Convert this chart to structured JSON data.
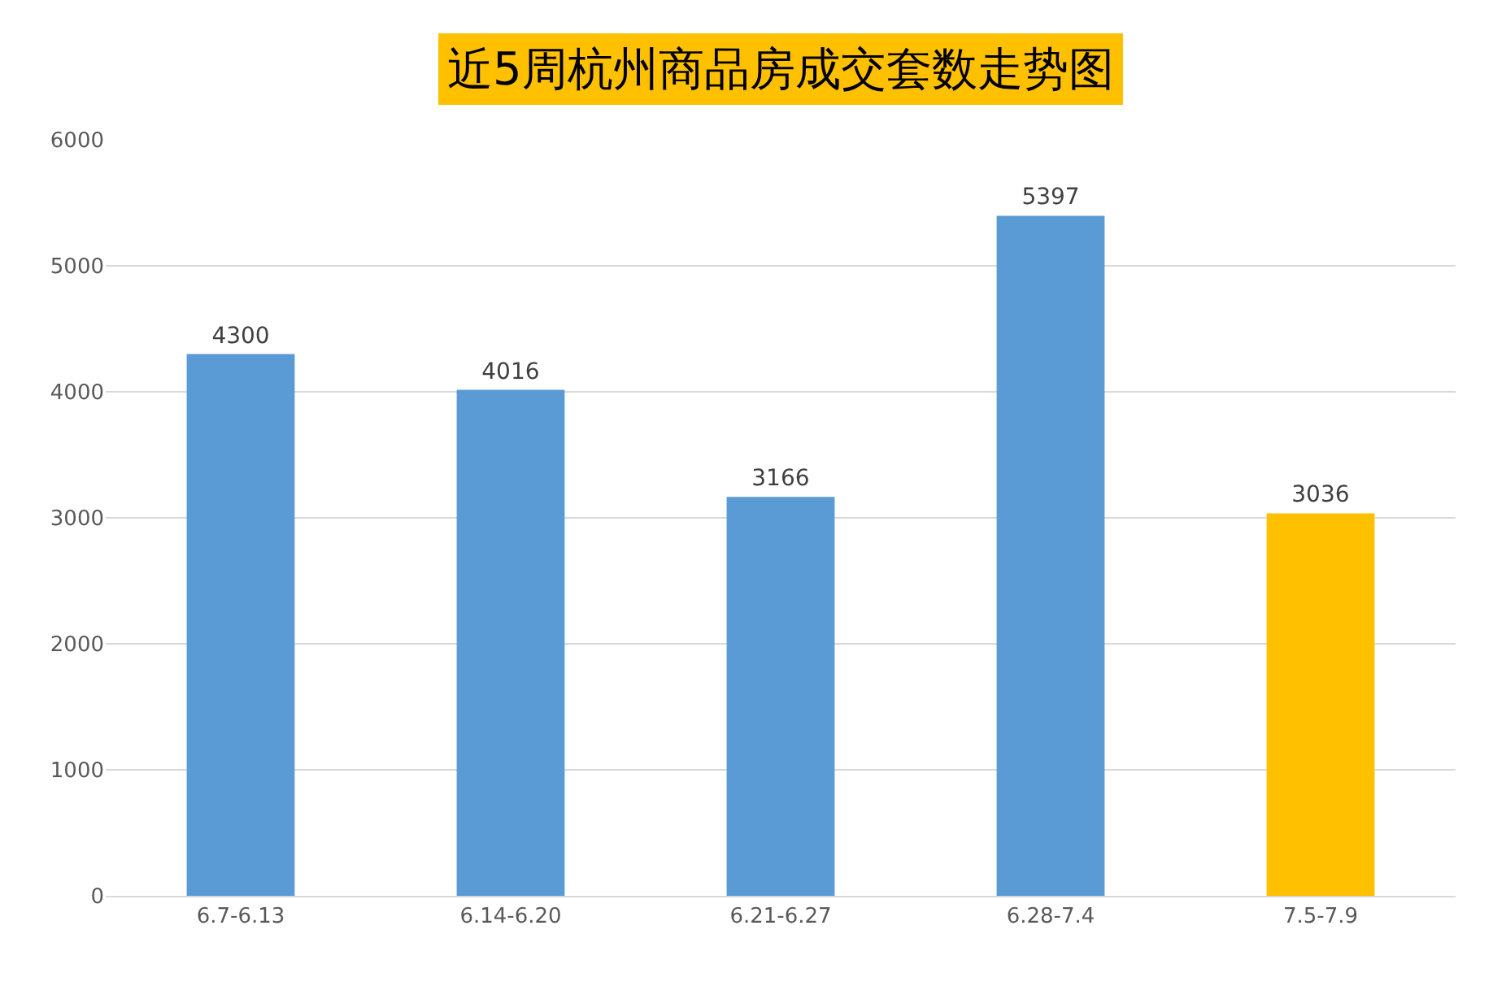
{
  "chart_data": {
    "type": "bar",
    "title": "近5周杭州商品房成交套数走势图",
    "categories": [
      "6.7-6.13",
      "6.14-6.20",
      "6.21-6.27",
      "6.28-7.4",
      "7.5-7.9"
    ],
    "values": [
      4300,
      4016,
      3166,
      5397,
      3036
    ],
    "colors": [
      "#5b9bd5",
      "#5b9bd5",
      "#5b9bd5",
      "#5b9bd5",
      "#ffc000"
    ],
    "ylim": [
      0,
      6000
    ],
    "yticks": [
      0,
      1000,
      2000,
      3000,
      4000,
      5000,
      6000
    ],
    "grid": "y",
    "data_labels": true,
    "legend": false
  }
}
